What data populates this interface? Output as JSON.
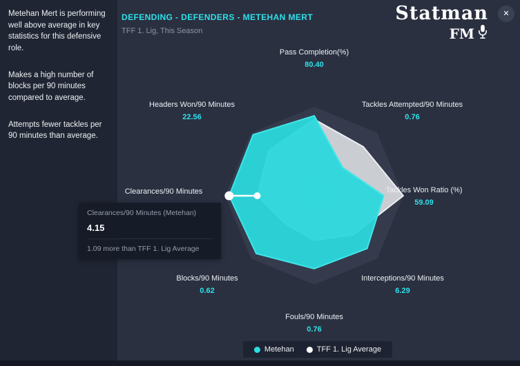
{
  "header": {
    "title": "DEFENDING - DEFENDERS - METEHAN MERT",
    "subtitle": "TFF 1. Lig, This Season"
  },
  "logo": {
    "line1": "Statman",
    "line2": "FM"
  },
  "icons": {
    "close": "✕"
  },
  "sidebar": {
    "paragraphs": [
      "Metehan Mert is performing well above average in key statistics for this defensive role.",
      "Makes a high number of blocks per 90 minutes compared to average.",
      "Attempts fewer tackles per 90 minutes than average."
    ]
  },
  "tooltip": {
    "title": "Clearances/90 Minutes (Metehan)",
    "value": "4.15",
    "comparison": "1.09 more than TFF 1. Lig Average"
  },
  "legend": [
    {
      "label": "Metehan",
      "color": "#2bdce0"
    },
    {
      "label": "TFF 1. Lig Average",
      "color": "#ffffff"
    }
  ],
  "colors": {
    "accent_cyan": "#2ee0ea",
    "average_white": "#ffffff",
    "background": "#2a3040",
    "panel": "#1f2532"
  },
  "chart_data": {
    "type": "radar",
    "title": "DEFENDING - DEFENDERS - METEHAN MERT",
    "subtitle": "TFF 1. Lig, This Season",
    "legend_position": "bottom",
    "hover_axis_index": 6,
    "axes": [
      {
        "label": "Pass Completion(%)",
        "value": "80.40",
        "show_value": true
      },
      {
        "label": "Tackles Attempted/90 Minutes",
        "value": "0.76",
        "show_value": true
      },
      {
        "label": "Tackles Won Ratio (%)",
        "value": "59.09",
        "show_value": true
      },
      {
        "label": "Interceptions/90 Minutes",
        "value": "6.29",
        "show_value": true
      },
      {
        "label": "Fouls/90 Minutes",
        "value": "0.76",
        "show_value": true
      },
      {
        "label": "Blocks/90 Minutes",
        "value": "0.62",
        "show_value": true
      },
      {
        "label": "Clearances/90 Minutes",
        "value": "4.15",
        "show_value": false
      },
      {
        "label": "Headers Won/90 Minutes",
        "value": "22.56",
        "show_value": true
      }
    ],
    "series": [
      {
        "name": "Metehan",
        "color": "#2bd8dc",
        "stroke": "#3fe6e9",
        "fill_opacity": 0.95,
        "normalized": [
          0.9,
          0.45,
          0.78,
          0.84,
          0.82,
          0.92,
          0.955,
          0.97
        ]
      },
      {
        "name": "TFF 1. Lig Average",
        "color": "#d8dade",
        "stroke": "#eceef2",
        "fill_opacity": 0.92,
        "normalized": [
          0.86,
          0.78,
          1.0,
          0.62,
          0.5,
          0.45,
          0.64,
          0.72
        ]
      }
    ]
  }
}
